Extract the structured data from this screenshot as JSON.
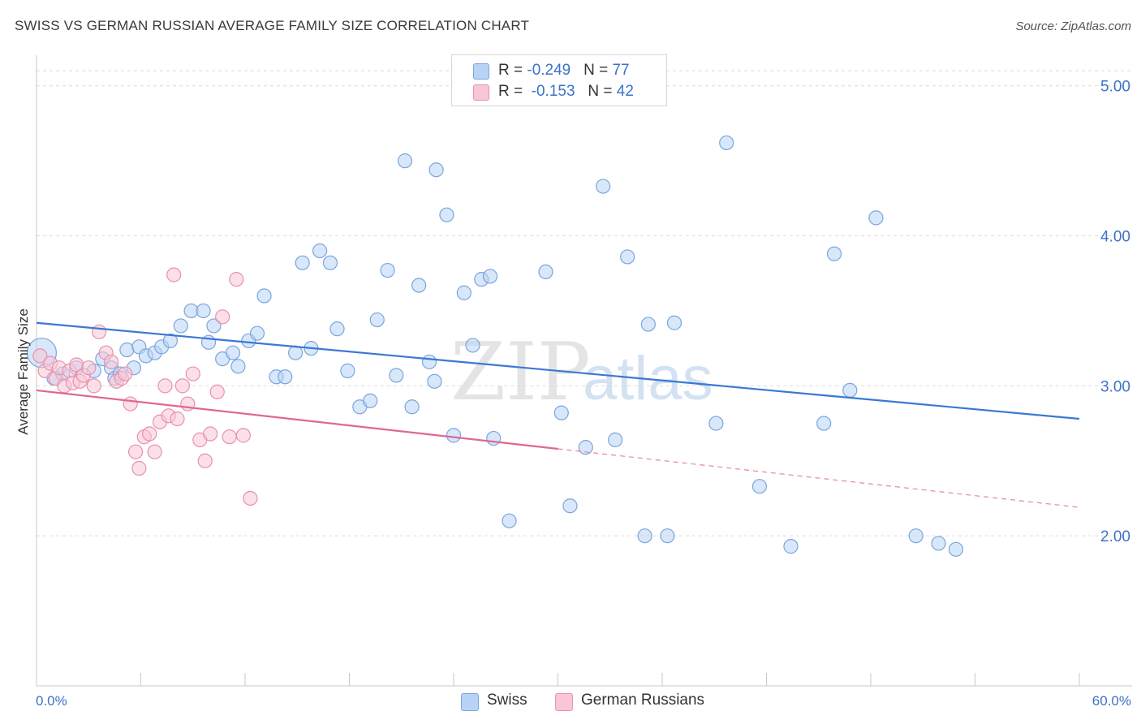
{
  "title": "SWISS VS GERMAN RUSSIAN AVERAGE FAMILY SIZE CORRELATION CHART",
  "source": "Source: ZipAtlas.com",
  "watermark": {
    "zip": "ZIP",
    "atlas": "atlas"
  },
  "legend": {
    "rows": [
      {
        "r_label": "R = ",
        "r_value": "-0.249",
        "n_label": "N = ",
        "n_value": "77",
        "color": "#b8d3f5",
        "border": "#7aa6dc"
      },
      {
        "r_label": "R = ",
        "r_value": "-0.153",
        "n_label": "N = ",
        "n_value": "42",
        "color": "#f8c6d5",
        "border": "#e891ad"
      }
    ]
  },
  "bottom_legend": [
    {
      "label": "Swiss",
      "color": "#b8d3f5",
      "border": "#7aa6dc"
    },
    {
      "label": "German Russians",
      "color": "#f8c6d5",
      "border": "#e891ad"
    }
  ],
  "chart_data": {
    "type": "scatter",
    "title": "SWISS VS GERMAN RUSSIAN AVERAGE FAMILY SIZE CORRELATION CHART",
    "xlabel": "",
    "ylabel": "Average Family Size",
    "xlim": [
      0,
      60
    ],
    "ylim": [
      1.0,
      5.15
    ],
    "x_tick_labels": [
      "0.0%",
      "60.0%"
    ],
    "y_ticks": [
      2.0,
      3.0,
      4.0,
      5.0
    ],
    "y_tick_labels": [
      "2.00",
      "3.00",
      "4.00",
      "5.00"
    ],
    "grid": true,
    "legend_position": "top-center",
    "series": [
      {
        "name": "Swiss",
        "color": "#7aa6dc",
        "fill": "#b8d3f5",
        "trend": {
          "x": [
            0,
            60
          ],
          "y": [
            3.42,
            2.78
          ],
          "color": "#3a78d4"
        },
        "points": [
          [
            0.3,
            3.22
          ],
          [
            1.0,
            3.05
          ],
          [
            1.5,
            3.08
          ],
          [
            2.3,
            3.12
          ],
          [
            3.3,
            3.1
          ],
          [
            3.8,
            3.18
          ],
          [
            4.3,
            3.12
          ],
          [
            4.5,
            3.05
          ],
          [
            4.8,
            3.08
          ],
          [
            5.2,
            3.24
          ],
          [
            5.6,
            3.12
          ],
          [
            5.9,
            3.26
          ],
          [
            6.3,
            3.2
          ],
          [
            6.8,
            3.22
          ],
          [
            7.2,
            3.26
          ],
          [
            7.7,
            3.3
          ],
          [
            8.3,
            3.4
          ],
          [
            8.9,
            3.5
          ],
          [
            9.6,
            3.5
          ],
          [
            9.9,
            3.29
          ],
          [
            10.2,
            3.4
          ],
          [
            10.7,
            3.18
          ],
          [
            11.3,
            3.22
          ],
          [
            11.6,
            3.13
          ],
          [
            12.2,
            3.3
          ],
          [
            12.7,
            3.35
          ],
          [
            13.1,
            3.6
          ],
          [
            13.8,
            3.06
          ],
          [
            14.3,
            3.06
          ],
          [
            14.9,
            3.22
          ],
          [
            15.3,
            3.82
          ],
          [
            15.8,
            3.25
          ],
          [
            16.3,
            3.9
          ],
          [
            16.9,
            3.82
          ],
          [
            17.3,
            3.38
          ],
          [
            17.9,
            3.1
          ],
          [
            18.6,
            2.86
          ],
          [
            19.2,
            2.9
          ],
          [
            19.6,
            3.44
          ],
          [
            20.2,
            3.77
          ],
          [
            20.7,
            3.07
          ],
          [
            21.2,
            4.5
          ],
          [
            21.6,
            2.86
          ],
          [
            22.0,
            3.67
          ],
          [
            22.6,
            3.16
          ],
          [
            22.9,
            3.03
          ],
          [
            23.0,
            4.44
          ],
          [
            23.6,
            4.14
          ],
          [
            24.0,
            2.67
          ],
          [
            24.6,
            3.62
          ],
          [
            25.1,
            3.27
          ],
          [
            25.6,
            3.71
          ],
          [
            26.1,
            3.73
          ],
          [
            26.3,
            2.65
          ],
          [
            27.2,
            2.1
          ],
          [
            29.3,
            3.76
          ],
          [
            30.2,
            2.82
          ],
          [
            30.7,
            2.2
          ],
          [
            31.6,
            2.59
          ],
          [
            32.6,
            4.33
          ],
          [
            33.3,
            2.64
          ],
          [
            34.0,
            3.86
          ],
          [
            35.0,
            2.0
          ],
          [
            35.2,
            3.41
          ],
          [
            36.3,
            2.0
          ],
          [
            36.7,
            3.42
          ],
          [
            39.1,
            2.75
          ],
          [
            39.7,
            4.62
          ],
          [
            41.6,
            2.33
          ],
          [
            43.4,
            1.93
          ],
          [
            45.3,
            2.75
          ],
          [
            45.9,
            3.88
          ],
          [
            46.8,
            2.97
          ],
          [
            48.3,
            4.12
          ],
          [
            50.6,
            2.0
          ],
          [
            51.9,
            1.95
          ],
          [
            52.9,
            1.91
          ]
        ]
      },
      {
        "name": "German Russians",
        "color": "#e891ad",
        "fill": "#f8c6d5",
        "trend": {
          "x": [
            0,
            30
          ],
          "y": [
            2.97,
            2.58
          ],
          "color": "#e0678f",
          "dashed_extension": {
            "x": [
              30,
              60
            ],
            "y": [
              2.58,
              2.19
            ]
          }
        },
        "points": [
          [
            0.2,
            3.2
          ],
          [
            0.5,
            3.1
          ],
          [
            0.8,
            3.15
          ],
          [
            1.1,
            3.05
          ],
          [
            1.3,
            3.12
          ],
          [
            1.6,
            3.0
          ],
          [
            1.9,
            3.1
          ],
          [
            2.1,
            3.02
          ],
          [
            2.3,
            3.14
          ],
          [
            2.5,
            3.03
          ],
          [
            2.7,
            3.07
          ],
          [
            3.0,
            3.12
          ],
          [
            3.3,
            3.0
          ],
          [
            3.6,
            3.36
          ],
          [
            4.0,
            3.22
          ],
          [
            4.3,
            3.16
          ],
          [
            4.6,
            3.03
          ],
          [
            4.9,
            3.05
          ],
          [
            5.1,
            3.08
          ],
          [
            5.4,
            2.88
          ],
          [
            5.7,
            2.56
          ],
          [
            5.9,
            2.45
          ],
          [
            6.2,
            2.66
          ],
          [
            6.5,
            2.68
          ],
          [
            6.8,
            2.56
          ],
          [
            7.1,
            2.76
          ],
          [
            7.4,
            3.0
          ],
          [
            7.6,
            2.8
          ],
          [
            7.9,
            3.74
          ],
          [
            8.1,
            2.78
          ],
          [
            8.4,
            3.0
          ],
          [
            8.7,
            2.88
          ],
          [
            9.0,
            3.08
          ],
          [
            9.4,
            2.64
          ],
          [
            9.7,
            2.5
          ],
          [
            10.0,
            2.68
          ],
          [
            10.4,
            2.96
          ],
          [
            10.7,
            3.46
          ],
          [
            11.1,
            2.66
          ],
          [
            11.5,
            3.71
          ],
          [
            11.9,
            2.67
          ],
          [
            12.3,
            2.25
          ]
        ]
      }
    ]
  }
}
